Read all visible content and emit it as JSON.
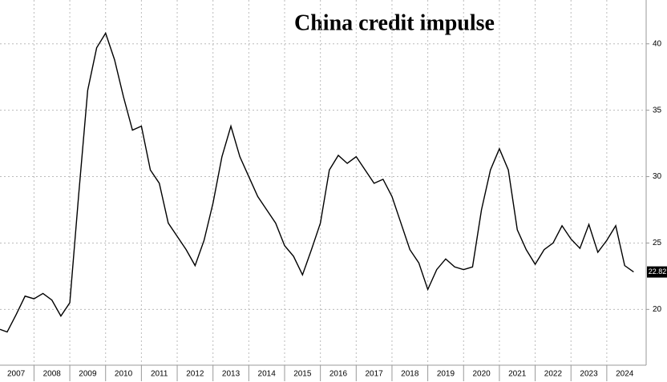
{
  "chart_data": {
    "type": "line",
    "title": "China credit impulse",
    "x": [
      2007.05,
      2007.25,
      2007.5,
      2007.75,
      2008.0,
      2008.25,
      2008.5,
      2008.75,
      2009.0,
      2009.25,
      2009.5,
      2009.75,
      2010.0,
      2010.25,
      2010.5,
      2010.75,
      2011.0,
      2011.25,
      2011.5,
      2011.75,
      2012.0,
      2012.25,
      2012.5,
      2012.75,
      2013.0,
      2013.25,
      2013.5,
      2013.75,
      2014.0,
      2014.25,
      2014.5,
      2014.75,
      2015.0,
      2015.25,
      2015.5,
      2015.75,
      2016.0,
      2016.25,
      2016.5,
      2016.75,
      2017.0,
      2017.25,
      2017.5,
      2017.75,
      2018.0,
      2018.25,
      2018.5,
      2018.75,
      2019.0,
      2019.25,
      2019.5,
      2019.75,
      2020.0,
      2020.25,
      2020.5,
      2020.75,
      2021.0,
      2021.25,
      2021.5,
      2021.75,
      2022.0,
      2022.25,
      2022.5,
      2022.75,
      2023.0,
      2023.25,
      2023.5,
      2023.75,
      2024.0,
      2024.25,
      2024.5,
      2024.75
    ],
    "series": [
      {
        "name": "China credit impulse",
        "color": "#000000",
        "values": [
          18.5,
          18.3,
          19.6,
          21.0,
          20.8,
          21.2,
          20.7,
          19.5,
          20.5,
          28.7,
          36.5,
          39.7,
          40.8,
          38.8,
          36.0,
          33.5,
          33.8,
          30.5,
          29.5,
          26.5,
          25.5,
          24.5,
          23.3,
          25.2,
          28.0,
          31.5,
          33.8,
          31.5,
          30.0,
          28.5,
          27.5,
          26.5,
          24.8,
          24.0,
          22.6,
          24.5,
          26.5,
          30.5,
          31.6,
          31.0,
          31.5,
          30.5,
          29.5,
          29.8,
          28.5,
          26.5,
          24.5,
          23.5,
          21.5,
          23.0,
          23.8,
          23.2,
          23.0,
          23.2,
          27.5,
          30.5,
          32.1,
          30.5,
          26.0,
          24.5,
          23.4,
          24.5,
          25.0,
          26.3,
          25.3,
          24.6,
          26.4,
          24.3,
          25.2,
          26.3,
          23.3,
          22.82
        ]
      }
    ],
    "xlim": [
      2007.05,
      2025.1
    ],
    "ylim": [
      15.8,
      43.3
    ],
    "xticks": [
      {
        "value": 2007,
        "label": "2007"
      },
      {
        "value": 2008,
        "label": "2008"
      },
      {
        "value": 2009,
        "label": "2009"
      },
      {
        "value": 2010,
        "label": "2010"
      },
      {
        "value": 2011,
        "label": "2011"
      },
      {
        "value": 2012,
        "label": "2012"
      },
      {
        "value": 2013,
        "label": "2013"
      },
      {
        "value": 2014,
        "label": "2014"
      },
      {
        "value": 2015,
        "label": "2015"
      },
      {
        "value": 2016,
        "label": "2016"
      },
      {
        "value": 2017,
        "label": "2017"
      },
      {
        "value": 2018,
        "label": "2018"
      },
      {
        "value": 2019,
        "label": "2019"
      },
      {
        "value": 2020,
        "label": "2020"
      },
      {
        "value": 2021,
        "label": "2021"
      },
      {
        "value": 2022,
        "label": "2022"
      },
      {
        "value": 2023,
        "label": "2023"
      },
      {
        "value": 2024,
        "label": "2024"
      }
    ],
    "yticks": [
      20,
      25,
      30,
      35,
      40
    ],
    "grid": true
  }
}
